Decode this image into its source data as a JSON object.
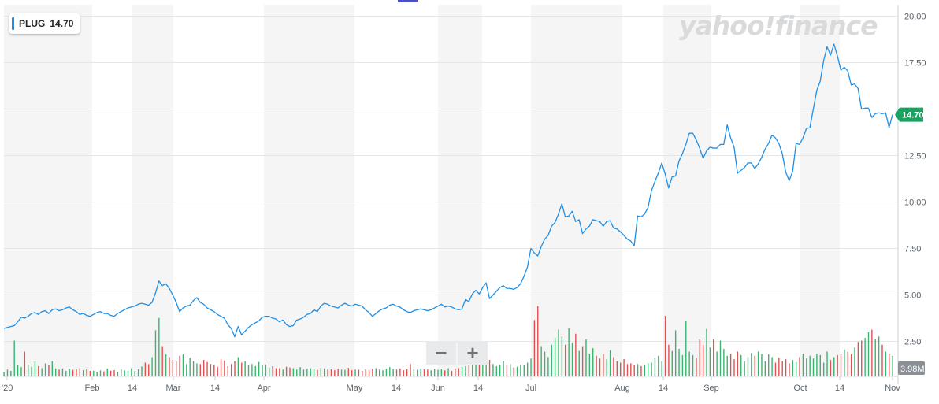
{
  "watermark": "yahoo!finance",
  "legend": {
    "ticker": "PLUG",
    "value": "14.70"
  },
  "last_price_label": "14.70",
  "volume_label": "3.98M",
  "zoom": {
    "minus": "−",
    "plus": "+"
  },
  "colors": {
    "line": "#1e8fe6",
    "vol_up": "#3cb371",
    "vol_down": "#e0524f",
    "price_tag": "#1aa260",
    "band": "#f5f5f5",
    "grid": "#e6e6e6"
  },
  "chart_data": {
    "type": "line",
    "x_tick_labels": [
      "'20",
      "Feb",
      "14",
      "Mar",
      "14",
      "Apr",
      "May",
      "14",
      "Jun",
      "14",
      "Jul",
      "Aug",
      "14",
      "Sep",
      "Oct",
      "14",
      "Nov"
    ],
    "y_ticks": [
      2.5,
      5,
      7.5,
      10,
      12.5,
      15,
      17.5,
      20
    ],
    "y_tick_labels": [
      "2.50",
      "5.00",
      "7.50",
      "10.00",
      "12.50",
      "",
      "17.50",
      "20.00"
    ],
    "ylim": [
      0,
      20.4
    ],
    "grid": true,
    "series": [
      {
        "values": [
          3.2,
          3.25,
          3.3,
          3.35,
          3.55,
          3.8,
          3.75,
          3.85,
          4.0,
          4.05,
          3.95,
          4.1,
          4.15,
          4.0,
          4.2,
          4.25,
          4.15,
          4.2,
          4.3,
          4.35,
          4.2,
          4.1,
          3.95,
          4.0,
          3.9,
          3.85,
          3.95,
          4.05,
          4.1,
          4.0,
          4.0,
          3.9,
          3.85,
          4.0,
          4.1,
          4.2,
          4.3,
          4.35,
          4.4,
          4.5,
          4.55,
          4.5,
          4.45,
          4.6,
          5.1,
          5.75,
          5.5,
          5.6,
          5.35,
          5.0,
          4.6,
          4.1,
          4.3,
          4.4,
          4.45,
          4.7,
          4.85,
          4.6,
          4.5,
          4.3,
          4.2,
          4.1,
          3.95,
          3.85,
          3.75,
          3.4,
          3.2,
          2.75,
          3.3,
          2.85,
          3.05,
          3.25,
          3.4,
          3.5,
          3.6,
          3.8,
          3.85,
          3.85,
          3.75,
          3.7,
          3.55,
          3.65,
          3.4,
          3.3,
          3.35,
          3.65,
          3.7,
          3.8,
          3.95,
          4.0,
          4.2,
          4.1,
          4.4,
          4.55,
          4.5,
          4.4,
          4.35,
          4.3,
          4.45,
          4.55,
          4.45,
          4.4,
          4.5,
          4.45,
          4.4,
          4.2,
          4.05,
          3.85,
          4.0,
          4.15,
          4.25,
          4.3,
          4.45,
          4.5,
          4.4,
          4.35,
          4.2,
          4.1,
          4.05,
          4.15,
          4.2,
          4.25,
          4.2,
          4.15,
          4.2,
          4.3,
          4.4,
          4.5,
          4.35,
          4.4,
          4.35,
          4.25,
          4.2,
          4.25,
          4.75,
          4.65,
          5.05,
          5.25,
          5.05,
          5.4,
          5.65,
          4.8,
          5.0,
          5.2,
          5.4,
          5.5,
          5.35,
          5.35,
          5.3,
          5.4,
          5.6,
          6.0,
          6.5,
          7.5,
          7.25,
          7.1,
          7.6,
          8.0,
          8.2,
          8.7,
          8.9,
          9.35,
          9.9,
          9.2,
          9.25,
          9.5,
          8.95,
          9.05,
          8.3,
          8.55,
          8.7,
          9.05,
          9.0,
          8.95,
          8.7,
          8.95,
          9.0,
          8.6,
          8.55,
          8.4,
          8.2,
          8.0,
          7.9,
          7.65,
          9.25,
          9.2,
          9.35,
          9.7,
          10.6,
          11.1,
          11.55,
          12.1,
          11.5,
          10.75,
          11.35,
          11.4,
          12.2,
          12.6,
          13.1,
          13.7,
          13.7,
          13.35,
          12.9,
          12.35,
          12.75,
          12.95,
          12.9,
          12.9,
          13.1,
          13.1,
          14.15,
          13.45,
          12.95,
          11.55,
          11.7,
          11.85,
          12.1,
          12.1,
          11.8,
          12.05,
          12.4,
          12.85,
          13.15,
          13.6,
          13.45,
          13.15,
          12.6,
          11.6,
          11.15,
          11.65,
          13.15,
          13.1,
          13.45,
          13.95,
          14.0,
          15.0,
          16.0,
          16.5,
          17.6,
          18.35,
          17.9,
          18.5,
          17.85,
          17.1,
          17.25,
          17.05,
          16.3,
          16.35,
          16.1,
          15.0,
          15.05,
          15.05,
          14.55,
          14.75,
          14.8,
          14.75,
          14.8,
          14.0,
          14.7
        ]
      }
    ],
    "volume": {
      "label": "3.98M",
      "values": [
        0.33,
        0.5,
        0.4,
        2.6,
        0.8,
        0.68,
        1.8,
        0.85,
        0.7,
        1.1,
        0.75,
        0.6,
        0.95,
        0.8,
        1.1,
        0.58,
        0.5,
        0.58,
        0.4,
        0.55,
        0.48,
        0.52,
        0.6,
        0.45,
        0.52,
        0.4,
        0.42,
        0.35,
        0.44,
        0.37,
        0.58,
        0.42,
        0.46,
        0.35,
        0.5,
        0.44,
        0.4,
        0.6,
        0.38,
        0.52,
        0.72,
        1.0,
        0.9,
        1.4,
        3.35,
        4.25,
        2.2,
        1.6,
        1.4,
        1.2,
        1.1,
        1.5,
        1.6,
        0.9,
        1.35,
        1.1,
        0.95,
        0.9,
        1.2,
        1.05,
        0.9,
        0.85,
        0.7,
        1.25,
        1.15,
        0.75,
        0.9,
        1.1,
        1.4,
        1.0,
        1.1,
        0.8,
        0.9,
        0.75,
        1.05,
        0.8,
        0.85,
        0.65,
        0.75,
        0.6,
        0.6,
        0.5,
        0.7,
        0.65,
        0.6,
        0.5,
        0.68,
        0.5,
        0.55,
        0.6,
        0.55,
        0.48,
        0.62,
        0.58,
        0.5,
        0.52,
        0.45,
        0.55,
        0.5,
        0.48,
        0.62,
        0.45,
        0.5,
        0.48,
        0.4,
        0.52,
        0.48,
        0.55,
        0.6,
        0.5,
        0.45,
        0.55,
        0.68,
        0.52,
        0.5,
        0.58,
        0.45,
        0.52,
        0.9,
        0.5,
        0.48,
        0.55,
        0.52,
        0.5,
        0.45,
        0.55,
        0.48,
        0.52,
        0.45,
        0.6,
        0.4,
        0.58,
        0.6,
        0.7,
        0.75,
        1.0,
        0.95,
        1.2,
        0.95,
        0.8,
        1.4,
        1.2,
        0.9,
        0.75,
        0.85,
        1.1,
        0.8,
        0.9,
        0.65,
        0.7,
        0.85,
        0.8,
        1.0,
        1.3,
        4.1,
        5.1,
        2.2,
        1.8,
        1.4,
        2.3,
        2.8,
        3.4,
        2.9,
        2.3,
        3.5,
        2.45,
        3.1,
        1.85,
        2.2,
        2.7,
        1.65,
        2.05,
        1.5,
        1.3,
        1.6,
        1.25,
        1.9,
        1.4,
        1.1,
        1.0,
        1.25,
        0.9,
        0.95,
        0.8,
        0.9,
        0.75,
        0.82,
        0.95,
        1.0,
        1.35,
        1.5,
        1.1,
        4.4,
        2.3,
        1.85,
        3.35,
        2.0,
        1.55,
        4.0,
        1.8,
        1.55,
        1.35,
        2.7,
        2.3,
        3.45,
        2.1,
        2.7,
        1.8,
        2.6,
        2.0,
        1.5,
        1.65,
        1.25,
        1.8,
        1.55,
        1.1,
        1.4,
        1.7,
        1.5,
        1.8,
        1.6,
        1.1,
        1.6,
        1.4,
        1.0,
        1.35,
        1.1,
        1.25,
        0.95,
        1.2,
        1.05,
        1.4,
        1.65,
        1.3,
        1.5,
        1.3,
        1.65,
        1.55,
        1.0,
        1.8,
        1.2,
        1.4,
        1.55,
        1.65,
        1.95,
        1.8,
        1.6,
        2.1,
        2.5,
        2.6,
        2.8,
        3.2,
        3.4,
        2.7,
        2.9,
        2.3,
        1.8,
        1.6,
        1.5,
        1.2,
        1.0,
        1.9,
        1.5,
        1.25,
        1.1,
        1.7,
        1.0,
        1.35,
        1.2,
        1.45,
        1.1,
        1.6,
        1.25,
        1.55,
        0.9
      ]
    }
  }
}
